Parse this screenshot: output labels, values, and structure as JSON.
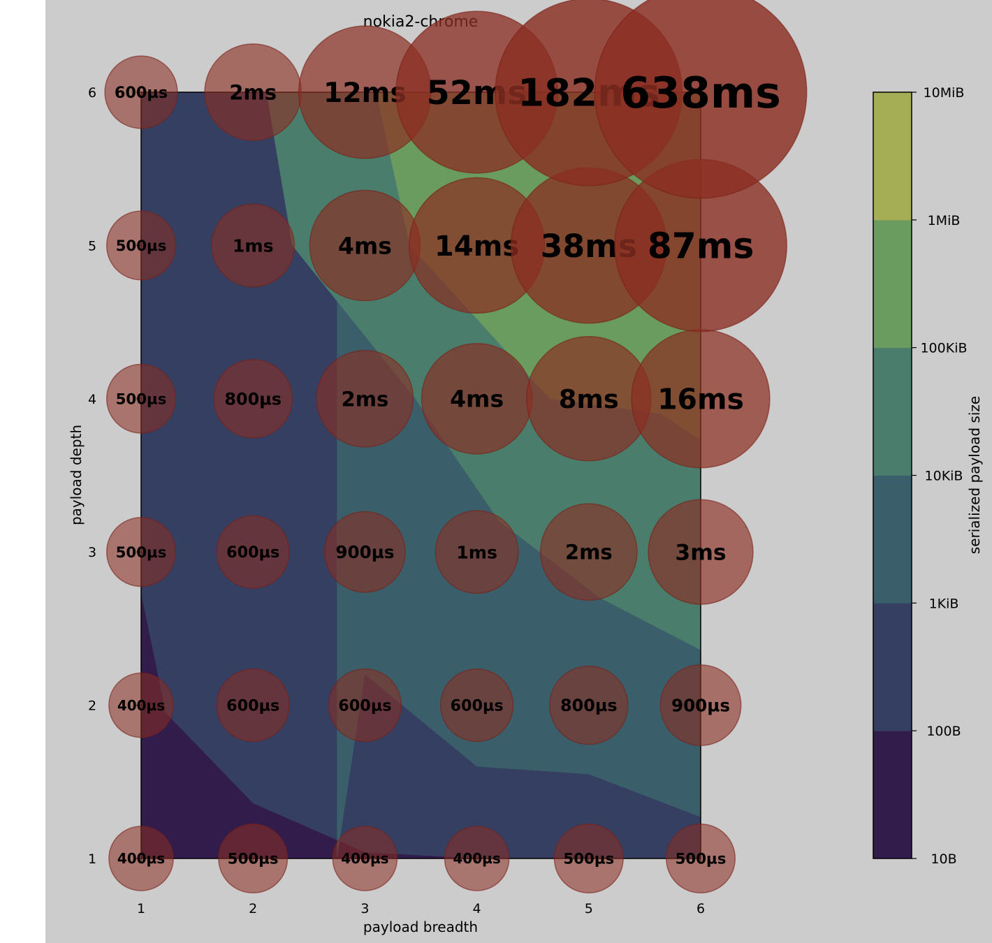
{
  "chart_data": {
    "type": "contour+bubble",
    "title": "nokia2-chrome",
    "xlabel": "payload breadth",
    "ylabel": "payload depth",
    "x": [
      1,
      2,
      3,
      4,
      5,
      6
    ],
    "y": [
      1,
      2,
      3,
      4,
      5,
      6
    ],
    "x_ticks": [
      "1",
      "2",
      "3",
      "4",
      "5",
      "6"
    ],
    "y_ticks": [
      "1",
      "2",
      "3",
      "4",
      "5",
      "6"
    ],
    "xlim": [
      1,
      6
    ],
    "ylim": [
      1,
      6
    ],
    "grid": false,
    "bubble_color": "#8b2e22",
    "durations_us": [
      [
        400,
        500,
        400,
        400,
        500,
        500
      ],
      [
        400,
        600,
        600,
        600,
        800,
        900
      ],
      [
        500,
        600,
        900,
        1000,
        2000,
        3000
      ],
      [
        500,
        800,
        2000,
        4000,
        8000,
        16000
      ],
      [
        500,
        1000,
        4000,
        14000,
        38000,
        87000
      ],
      [
        600,
        2000,
        12000,
        52000,
        182000,
        638000
      ]
    ],
    "duration_labels": [
      [
        "400µs",
        "500µs",
        "400µs",
        "400µs",
        "500µs",
        "500µs"
      ],
      [
        "400µs",
        "600µs",
        "600µs",
        "600µs",
        "800µs",
        "900µs"
      ],
      [
        "500µs",
        "600µs",
        "900µs",
        "1ms",
        "2ms",
        "3ms"
      ],
      [
        "500µs",
        "800µs",
        "2ms",
        "4ms",
        "8ms",
        "16ms"
      ],
      [
        "500µs",
        "1ms",
        "4ms",
        "14ms",
        "38ms",
        "87ms"
      ],
      [
        "600µs",
        "2ms",
        "12ms",
        "52ms",
        "182ms",
        "638ms"
      ]
    ],
    "contour": {
      "scale": "log",
      "levels_bytes": [
        10,
        100,
        1024,
        10240,
        102400,
        1048576,
        10485760
      ],
      "level_labels": [
        "10B",
        "100B",
        "1KiB",
        "10KiB",
        "100KiB",
        "1MiB",
        "10MiB"
      ],
      "band_colors": [
        "#311c4b",
        "#353f62",
        "#3a5f6a",
        "#4a7d6c",
        "#6a9c5f",
        "#a6ae55"
      ],
      "boundaries": [
        {
          "band": 1,
          "points": [
            [
              1,
              2.73
            ],
            [
              1.22,
              1.95
            ],
            [
              2,
              1.36
            ],
            [
              3,
              1.04
            ],
            [
              4,
              1.0
            ]
          ]
        },
        {
          "band": 2,
          "points": [
            [
              2.75,
              1.0
            ],
            [
              3,
              2.2
            ],
            [
              4,
              1.6
            ],
            [
              5,
              1.55
            ],
            [
              6,
              1.27
            ]
          ]
        },
        {
          "band": 3,
          "points": [
            [
              2.12,
              6.0
            ],
            [
              2.35,
              5.0
            ],
            [
              3.45,
              4.0
            ],
            [
              4.2,
              3.2
            ],
            [
              5.1,
              2.7
            ],
            [
              6,
              2.36
            ]
          ]
        },
        {
          "band": 4,
          "points": [
            [
              3.1,
              6.0
            ],
            [
              3.4,
              5.0
            ],
            [
              4.65,
              4.0
            ],
            [
              5.65,
              3.9
            ],
            [
              6,
              3.73
            ]
          ]
        }
      ]
    },
    "colorbar": {
      "label": "serialized payload size",
      "ticks": [
        "10B",
        "100B",
        "1KiB",
        "10KiB",
        "100KiB",
        "1MiB",
        "10MiB"
      ]
    }
  }
}
